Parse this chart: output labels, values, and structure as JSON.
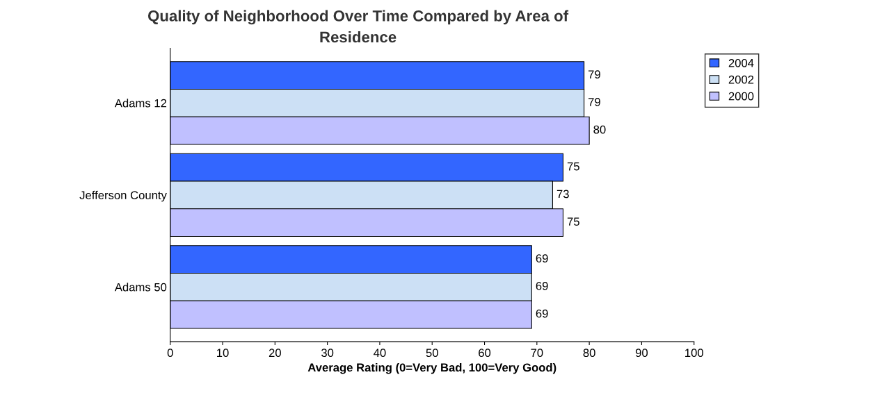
{
  "chart_data": {
    "type": "bar",
    "orientation": "horizontal",
    "title": "Quality of Neighborhood Over Time Compared by Area of\nResidence",
    "xlabel": "Average Rating (0=Very Bad, 100=Very Good)",
    "categories": [
      "Adams 12",
      "Jefferson County",
      "Adams 50"
    ],
    "series": [
      {
        "name": "2004",
        "color": "#3366ff",
        "values": [
          79,
          75,
          69
        ]
      },
      {
        "name": "2002",
        "color": "#cce0f5",
        "values": [
          79,
          73,
          69
        ]
      },
      {
        "name": "2000",
        "color": "#c0c0ff",
        "values": [
          80,
          75,
          69
        ]
      }
    ],
    "xlim": [
      0,
      100
    ],
    "xticks": [
      0,
      10,
      20,
      30,
      40,
      50,
      60,
      70,
      80,
      90,
      100
    ],
    "data_labels": true,
    "legend": "right",
    "grid": false
  }
}
